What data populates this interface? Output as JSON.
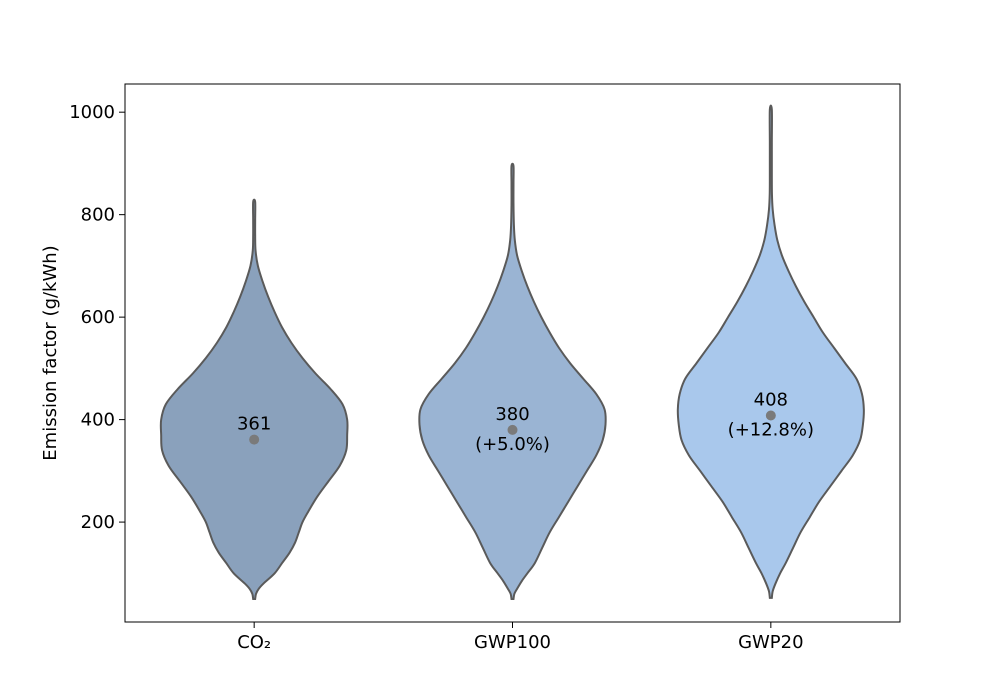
{
  "chart_data": {
    "type": "violin",
    "ylabel": "Emission factor (g/kWh)",
    "xlabel": "",
    "ylim": [
      5,
      1055
    ],
    "yticks": [
      200,
      400,
      600,
      800,
      1000
    ],
    "ytick_labels": [
      "200",
      "400",
      "600",
      "800",
      "1000"
    ],
    "categories": [
      "CO₂",
      "GWP100",
      "GWP20"
    ],
    "grid": false,
    "series": [
      {
        "category": "CO₂",
        "color": "#8aa1bc",
        "mean": 361,
        "label_line1": "361",
        "label_line2": "",
        "min": 50,
        "max": 825,
        "profile": [
          [
            50,
            0.0
          ],
          [
            60,
            0.02
          ],
          [
            70,
            0.05
          ],
          [
            80,
            0.1
          ],
          [
            100,
            0.22
          ],
          [
            120,
            0.3
          ],
          [
            140,
            0.38
          ],
          [
            160,
            0.44
          ],
          [
            180,
            0.48
          ],
          [
            200,
            0.52
          ],
          [
            220,
            0.58
          ],
          [
            250,
            0.68
          ],
          [
            280,
            0.8
          ],
          [
            310,
            0.92
          ],
          [
            340,
            0.99
          ],
          [
            370,
            1.0
          ],
          [
            400,
            1.0
          ],
          [
            430,
            0.95
          ],
          [
            460,
            0.82
          ],
          [
            490,
            0.66
          ],
          [
            520,
            0.52
          ],
          [
            550,
            0.4
          ],
          [
            580,
            0.3
          ],
          [
            610,
            0.22
          ],
          [
            640,
            0.15
          ],
          [
            670,
            0.09
          ],
          [
            700,
            0.04
          ],
          [
            730,
            0.015
          ],
          [
            760,
            0.01
          ],
          [
            790,
            0.008
          ],
          [
            825,
            0.005
          ]
        ]
      },
      {
        "category": "GWP100",
        "color": "#9ab4d3",
        "mean": 380,
        "label_line1": "380",
        "label_line2": "(+5.0%)",
        "min": 50,
        "max": 895,
        "profile": [
          [
            50,
            0.0
          ],
          [
            60,
            0.02
          ],
          [
            70,
            0.05
          ],
          [
            85,
            0.1
          ],
          [
            100,
            0.16
          ],
          [
            120,
            0.24
          ],
          [
            150,
            0.32
          ],
          [
            180,
            0.4
          ],
          [
            210,
            0.5
          ],
          [
            240,
            0.6
          ],
          [
            270,
            0.7
          ],
          [
            300,
            0.8
          ],
          [
            330,
            0.9
          ],
          [
            360,
            0.97
          ],
          [
            390,
            1.0
          ],
          [
            420,
            0.99
          ],
          [
            450,
            0.9
          ],
          [
            480,
            0.76
          ],
          [
            510,
            0.62
          ],
          [
            540,
            0.5
          ],
          [
            570,
            0.4
          ],
          [
            600,
            0.31
          ],
          [
            630,
            0.23
          ],
          [
            660,
            0.16
          ],
          [
            690,
            0.1
          ],
          [
            720,
            0.05
          ],
          [
            750,
            0.025
          ],
          [
            780,
            0.015
          ],
          [
            820,
            0.01
          ],
          [
            860,
            0.008
          ],
          [
            895,
            0.005
          ]
        ]
      },
      {
        "category": "GWP20",
        "color": "#a9c8ec",
        "mean": 408,
        "label_line1": "408",
        "label_line2": "(+12.8%)",
        "min": 52,
        "max": 1005,
        "profile": [
          [
            52,
            0.0
          ],
          [
            65,
            0.02
          ],
          [
            80,
            0.05
          ],
          [
            100,
            0.1
          ],
          [
            120,
            0.16
          ],
          [
            150,
            0.24
          ],
          [
            180,
            0.32
          ],
          [
            210,
            0.42
          ],
          [
            240,
            0.52
          ],
          [
            270,
            0.64
          ],
          [
            300,
            0.76
          ],
          [
            330,
            0.88
          ],
          [
            360,
            0.96
          ],
          [
            390,
            0.99
          ],
          [
            420,
            1.0
          ],
          [
            450,
            0.98
          ],
          [
            480,
            0.92
          ],
          [
            510,
            0.8
          ],
          [
            540,
            0.68
          ],
          [
            570,
            0.56
          ],
          [
            600,
            0.46
          ],
          [
            630,
            0.36
          ],
          [
            660,
            0.27
          ],
          [
            690,
            0.19
          ],
          [
            720,
            0.12
          ],
          [
            750,
            0.07
          ],
          [
            780,
            0.04
          ],
          [
            810,
            0.02
          ],
          [
            840,
            0.012
          ],
          [
            880,
            0.008
          ],
          [
            940,
            0.006
          ],
          [
            1005,
            0.004
          ]
        ]
      }
    ]
  },
  "colors": {
    "outline": "#5a5a5a",
    "mean_marker": "#7a7a7a",
    "frame": "#000000"
  }
}
